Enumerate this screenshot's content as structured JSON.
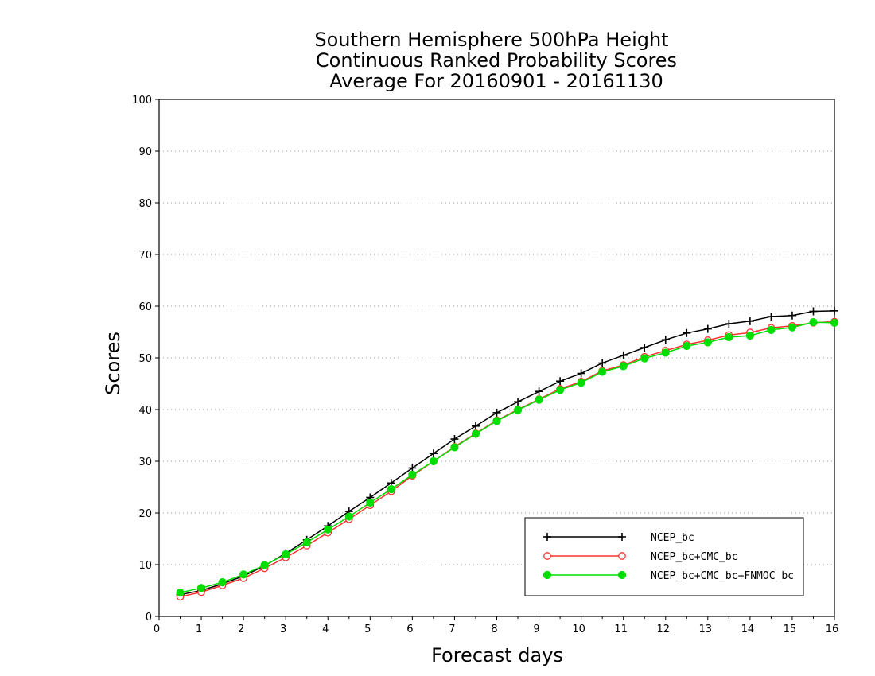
{
  "chart_data": {
    "type": "line",
    "title_lines": [
      "Southern Hemisphere 500hPa Height",
      "Continuous Ranked Probability Scores",
      "Average For 20160901 - 20161130"
    ],
    "xlabel": "Forecast days",
    "ylabel": "Scores",
    "xlim": [
      0,
      16
    ],
    "ylim": [
      0,
      100
    ],
    "x_ticks": [
      0,
      1,
      2,
      3,
      4,
      5,
      6,
      7,
      8,
      9,
      10,
      11,
      12,
      13,
      14,
      15,
      16
    ],
    "y_ticks": [
      0,
      10,
      20,
      30,
      40,
      50,
      60,
      70,
      80,
      90,
      100
    ],
    "grid": "horizontal dotted",
    "legend_position": "bottom-right",
    "x": [
      0.5,
      1,
      1.5,
      2,
      2.5,
      3,
      3.5,
      4,
      4.5,
      5,
      5.5,
      6,
      6.5,
      7,
      7.5,
      8,
      8.5,
      9,
      9.5,
      10,
      10.5,
      11,
      11.5,
      12,
      12.5,
      13,
      13.5,
      14,
      14.5,
      15,
      15.5,
      16
    ],
    "series": [
      {
        "name": "NCEP_bc",
        "color": "#000000",
        "marker": "plus",
        "values": [
          4.2,
          5.0,
          6.3,
          7.8,
          9.8,
          12.2,
          14.8,
          17.5,
          20.3,
          23.0,
          25.8,
          28.7,
          31.5,
          34.3,
          36.8,
          39.4,
          41.5,
          43.5,
          45.5,
          47.0,
          49.0,
          50.5,
          52.0,
          53.5,
          54.8,
          55.6,
          56.6,
          57.1,
          58.0,
          58.2,
          59.0,
          59.1
        ]
      },
      {
        "name": "NCEP_bc+CMC_bc",
        "color": "#ff3030",
        "marker": "open-circle",
        "values": [
          3.8,
          4.7,
          6.0,
          7.4,
          9.3,
          11.4,
          13.7,
          16.2,
          18.8,
          21.5,
          24.2,
          27.2,
          30.0,
          32.8,
          35.4,
          37.9,
          40.0,
          42.0,
          44.0,
          45.4,
          47.5,
          48.6,
          50.2,
          51.4,
          52.6,
          53.4,
          54.4,
          54.9,
          55.8,
          56.2,
          56.8,
          57.0
        ]
      },
      {
        "name": "NCEP_bc+CMC_bc+FNMOC_bc",
        "color": "#00dd00",
        "marker": "filled-circle",
        "values": [
          4.6,
          5.5,
          6.6,
          8.1,
          9.9,
          12.0,
          14.3,
          16.8,
          19.3,
          22.0,
          24.6,
          27.4,
          30.0,
          32.7,
          35.3,
          37.8,
          39.9,
          41.9,
          43.8,
          45.2,
          47.3,
          48.4,
          49.9,
          51.0,
          52.3,
          53.0,
          54.0,
          54.3,
          55.4,
          55.9,
          56.9,
          56.8
        ]
      }
    ]
  }
}
